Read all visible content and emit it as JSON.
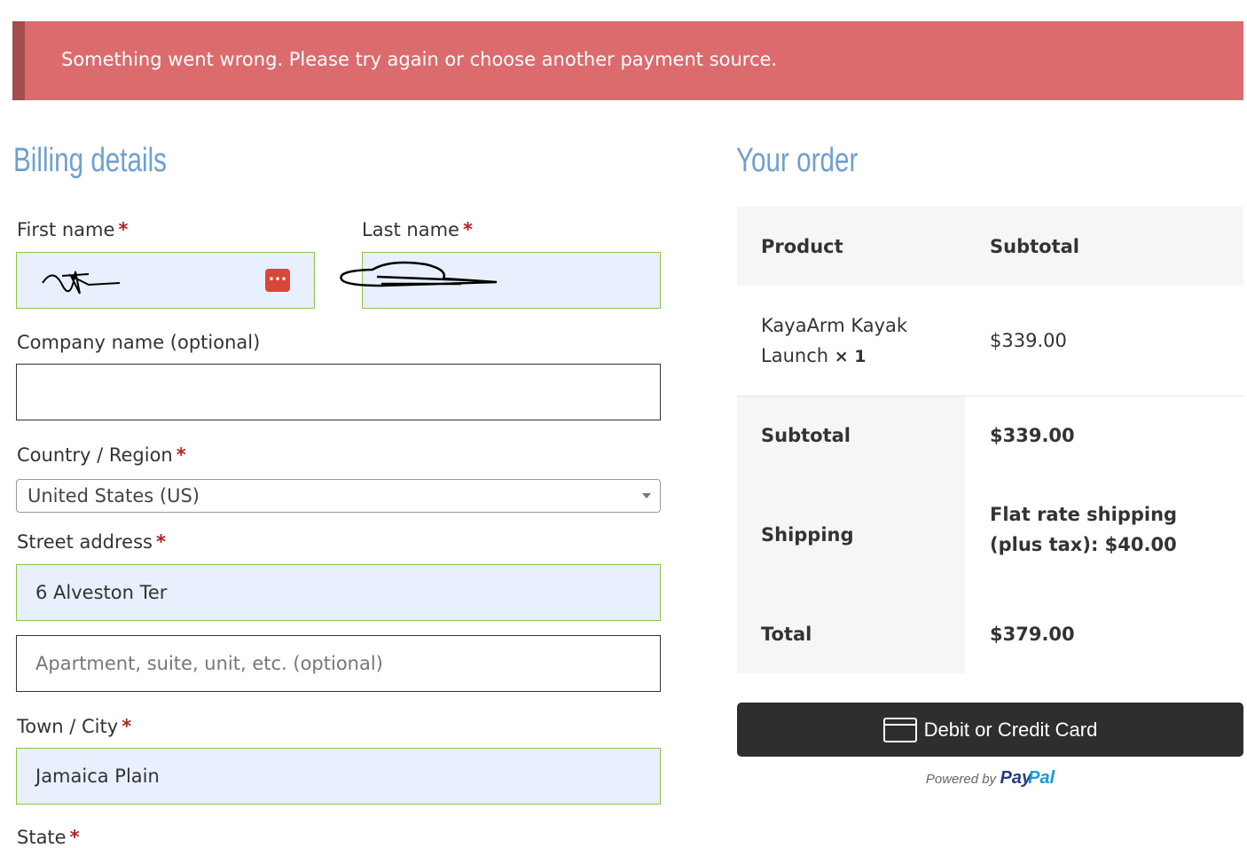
{
  "notice": {
    "message": "Something went wrong. Please try again or choose another payment source.",
    "bg_color": "#dc6b6e"
  },
  "billing": {
    "title": "Billing details",
    "required_mark": "*",
    "first_name": {
      "label": "First name"
    },
    "last_name": {
      "label": "Last name"
    },
    "company": {
      "label": "Company name (optional)",
      "value": ""
    },
    "country": {
      "label": "Country / Region",
      "value": "United States (US)"
    },
    "street": {
      "label": "Street address",
      "value": "6 Alveston Ter",
      "placeholder2": "Apartment, suite, unit, etc. (optional)"
    },
    "city": {
      "label": "Town / City",
      "value": "Jamaica Plain"
    },
    "state": {
      "label": "State"
    }
  },
  "order": {
    "title": "Your order",
    "headers": [
      "Product",
      "Subtotal"
    ],
    "item": {
      "name": "KayaArm Kayak Launch",
      "qty": "× 1",
      "price": "$339.00"
    },
    "subtotal": {
      "label": "Subtotal",
      "value": "$339.00"
    },
    "shipping": {
      "label": "Shipping",
      "value": "Flat rate shipping (plus tax): $40.00"
    },
    "total": {
      "label": "Total",
      "value": "$379.00"
    }
  },
  "payment": {
    "button": "Debit or Credit Card",
    "powered_by": "Powered by",
    "brand_pay": "Pay",
    "brand_pal": "Pal"
  }
}
